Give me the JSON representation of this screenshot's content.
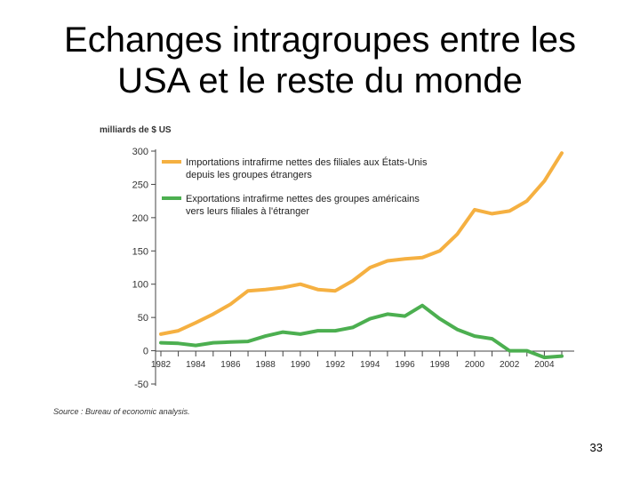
{
  "slide": {
    "title_line1": "Echanges intragroupes entre les",
    "title_line2": "USA et le reste du monde",
    "page_number": "33"
  },
  "chart_data": {
    "type": "line",
    "ylabel": "milliards de $ US",
    "source": "Source : Bureau of economic analysis.",
    "ylim": [
      -50,
      300
    ],
    "yticks": [
      -50,
      0,
      50,
      100,
      150,
      200,
      250,
      300
    ],
    "xlim": [
      1982,
      2005
    ],
    "xticks": [
      1982,
      1984,
      1986,
      1988,
      1990,
      1992,
      1994,
      1996,
      1998,
      2000,
      2002,
      2004
    ],
    "grid": false,
    "legend_position": "top-left",
    "series": [
      {
        "name_line1": "Importations intrafirme nettes des filiales aux États-Unis",
        "name_line2": "depuis les groupes étrangers",
        "color": "#f5b041",
        "x": [
          1982,
          1983,
          1984,
          1985,
          1986,
          1987,
          1988,
          1989,
          1990,
          1991,
          1992,
          1993,
          1994,
          1995,
          1996,
          1997,
          1998,
          1999,
          2000,
          2001,
          2002,
          2003,
          2004,
          2005
        ],
        "y": [
          25,
          30,
          42,
          55,
          70,
          90,
          92,
          95,
          100,
          92,
          90,
          105,
          125,
          135,
          138,
          140,
          150,
          175,
          212,
          206,
          210,
          225,
          255,
          297
        ]
      },
      {
        "name_line1": "Exportations intrafirme nettes des groupes américains",
        "name_line2": "vers leurs filiales à l'étranger",
        "color": "#4caf50",
        "x": [
          1982,
          1983,
          1984,
          1985,
          1986,
          1987,
          1988,
          1989,
          1990,
          1991,
          1992,
          1993,
          1994,
          1995,
          1996,
          1997,
          1998,
          1999,
          2000,
          2001,
          2002,
          2003,
          2004,
          2005
        ],
        "y": [
          12,
          11,
          8,
          12,
          13,
          14,
          22,
          28,
          25,
          30,
          30,
          35,
          48,
          55,
          52,
          68,
          48,
          32,
          22,
          18,
          0,
          0,
          -10,
          -8
        ]
      }
    ]
  }
}
